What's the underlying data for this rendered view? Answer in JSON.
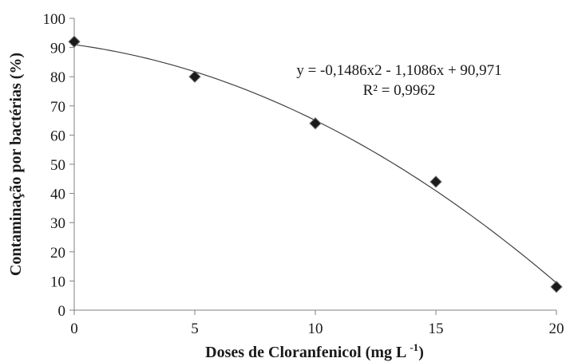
{
  "chart_data": {
    "type": "scatter",
    "xlabel": "Doses de Cloranfenicol (mg L",
    "xlabel_superscript": "-1",
    "xlabel_suffix": ")",
    "ylabel": "Contaminação por bactérias (%)",
    "xlim": [
      0,
      20
    ],
    "ylim": [
      0,
      100
    ],
    "x_ticks": [
      0,
      5,
      10,
      15,
      20
    ],
    "y_ticks": [
      0,
      10,
      20,
      30,
      40,
      50,
      60,
      70,
      80,
      90,
      100
    ],
    "grid": false,
    "series": [
      {
        "x": [
          0,
          5,
          10,
          15,
          20
        ],
        "y": [
          92,
          80,
          64,
          44,
          8
        ]
      }
    ],
    "trendline": {
      "type": "polynomial",
      "coefficients": [
        -0.1486,
        -1.1086,
        90.971
      ],
      "equation": "y = -0,1486x2 - 1,1086x + 90,971",
      "r_squared": "R² = 0,9962"
    },
    "colors": {
      "marker": "#1a1a1a",
      "line": "#404040",
      "axis": "#808080"
    }
  }
}
